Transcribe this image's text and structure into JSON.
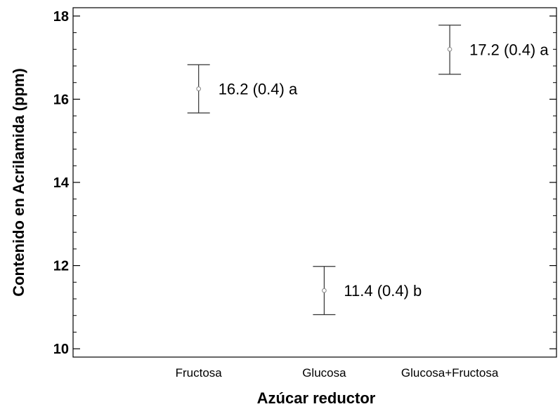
{
  "chart_data": {
    "type": "scatter",
    "xlabel": "Azúcar reductor",
    "ylabel": "Contenido en Acrilamida (ppm)",
    "ylim": [
      9.8,
      18.2
    ],
    "y_ticks": [
      10,
      12,
      14,
      16,
      18
    ],
    "y_tick_labels": [
      "10",
      "12",
      "14",
      "16",
      "18"
    ],
    "y_minor_step": 0.4,
    "categories": [
      "Fructosa",
      "Glucosa",
      "Glucosa+Fructosa"
    ],
    "x_positions": [
      1,
      2,
      3
    ],
    "xlim": [
      0,
      3.85
    ],
    "points": [
      {
        "category": "Fructosa",
        "mean": 16.25,
        "lower": 15.67,
        "upper": 16.83,
        "label": "16.2 (0.4) a"
      },
      {
        "category": "Glucosa",
        "mean": 11.4,
        "lower": 10.82,
        "upper": 11.98,
        "label": "11.4 (0.4) b"
      },
      {
        "category": "Glucosa+Fructosa",
        "mean": 17.2,
        "lower": 16.6,
        "upper": 17.78,
        "label": "17.2 (0.4) a"
      }
    ],
    "grid": false,
    "legend": "none",
    "colors": {
      "axis": "#000000",
      "error_bar": "#333333",
      "marker": "#888888",
      "background": "#ffffff"
    }
  }
}
